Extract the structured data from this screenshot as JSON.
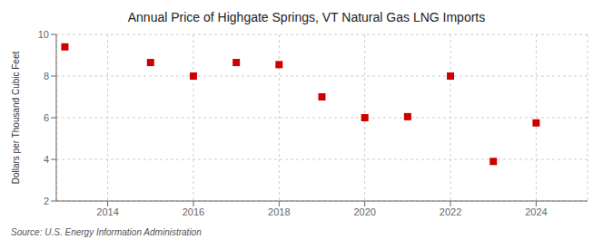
{
  "chart_data": {
    "type": "scatter",
    "title": "Annual Price of Highgate Springs, VT Natural Gas LNG Imports",
    "y_label": "Dollars per Thousand Cubic Feet",
    "annotations": [
      "Source: U.S. Energy Information Administration"
    ],
    "x": [
      2013,
      2015,
      2016,
      2017,
      2018,
      2019,
      2020,
      2021,
      2022,
      2023,
      2024
    ],
    "values": [
      9.4,
      8.65,
      8.0,
      8.65,
      8.55,
      7.0,
      6.0,
      6.05,
      8.0,
      3.9,
      5.75
    ],
    "xlim": [
      2012.8,
      2025.2
    ],
    "xticks": [
      2014,
      2016,
      2018,
      2020,
      2022,
      2024
    ],
    "ylim": [
      2,
      10
    ],
    "yticks": [
      2,
      4,
      6,
      8,
      10
    ],
    "color": "#cc0000",
    "marker": "square",
    "grid": true
  }
}
